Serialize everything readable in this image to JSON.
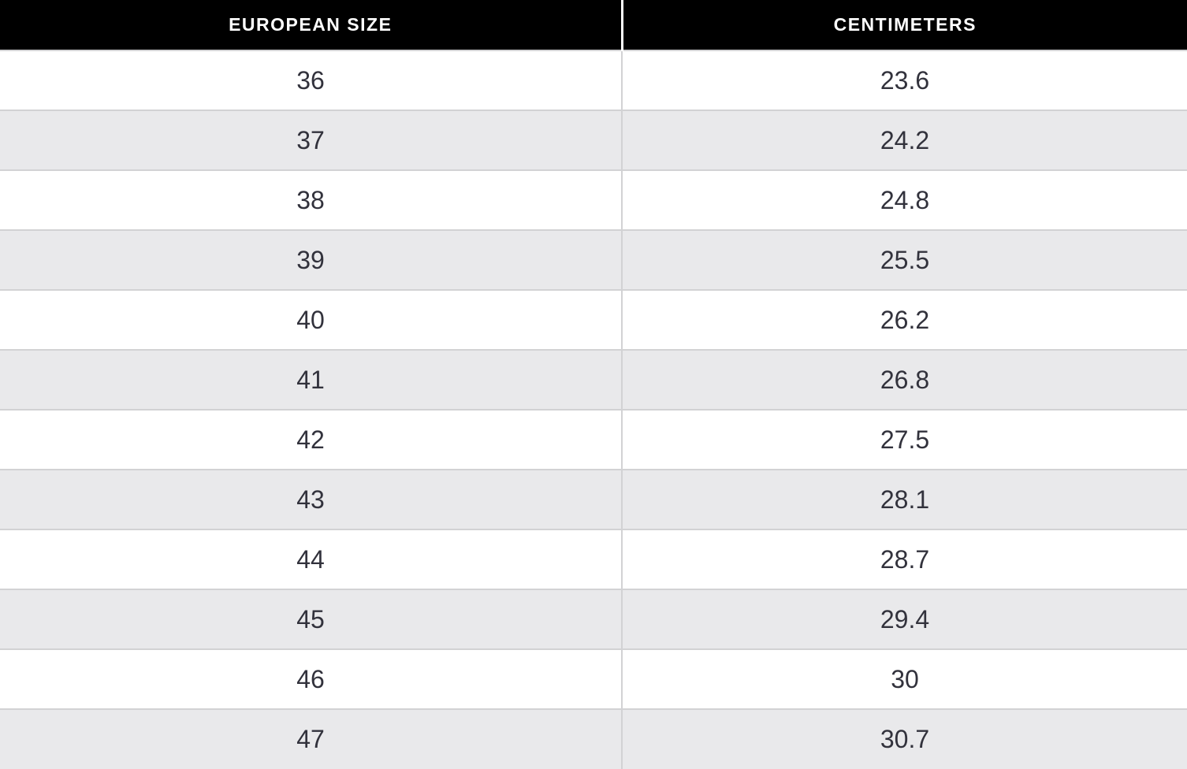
{
  "chart_data": {
    "type": "table",
    "columns": [
      "EUROPEAN SIZE",
      "CENTIMETERS"
    ],
    "rows": [
      [
        "36",
        "23.6"
      ],
      [
        "37",
        "24.2"
      ],
      [
        "38",
        "24.8"
      ],
      [
        "39",
        "25.5"
      ],
      [
        "40",
        "26.2"
      ],
      [
        "41",
        "26.8"
      ],
      [
        "42",
        "27.5"
      ],
      [
        "43",
        "28.1"
      ],
      [
        "44",
        "28.7"
      ],
      [
        "45",
        "29.4"
      ],
      [
        "46",
        "30"
      ],
      [
        "47",
        "30.7"
      ]
    ]
  },
  "table": {
    "header": {
      "col1": "EUROPEAN SIZE",
      "col2": "CENTIMETERS"
    }
  },
  "colors": {
    "header_bg": "#000000",
    "header_text": "#ffffff",
    "row_bg": "#ffffff",
    "row_alt_bg": "#e9e9eb",
    "border": "#d2d2d4",
    "body_text": "#32323c",
    "header_divider": "#fdfdfd"
  }
}
